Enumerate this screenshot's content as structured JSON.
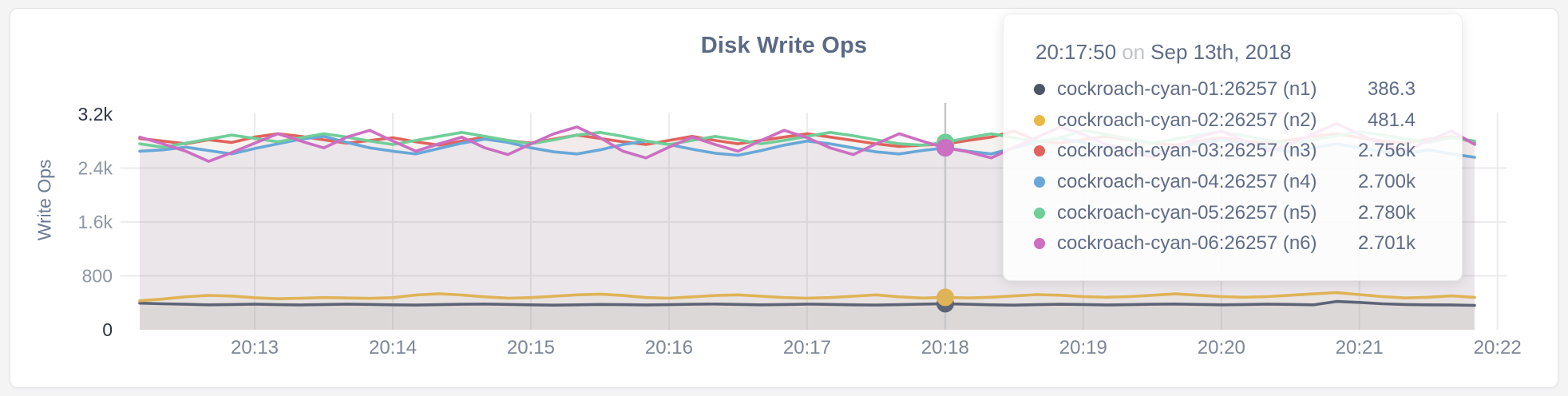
{
  "page": {
    "background": "#f4f4f5"
  },
  "chart_data": {
    "type": "line",
    "title": "Disk Write Ops",
    "ylabel": "Write Ops",
    "x_tick_labels": [
      "20:13",
      "20:14",
      "20:15",
      "20:16",
      "20:17",
      "20:18",
      "20:19",
      "20:20",
      "20:21",
      "20:22"
    ],
    "y_tick_labels": [
      "0",
      "800",
      "1.6k",
      "2.4k",
      "3.2k"
    ],
    "y_tick_values": [
      0,
      800,
      1600,
      2400,
      3200
    ],
    "ylim": [
      0,
      3200
    ],
    "grid": true,
    "legend_position": "none",
    "hover_index": 35,
    "hover_time": "20:17:50",
    "colors": {
      "grid": "#ebebed",
      "crosshair": "#c7c7ca",
      "axis_tick_light": "#8d96a7",
      "axis_tick_dark": "#2c3545",
      "x_tick": "#7d8698"
    },
    "series": [
      {
        "name": "cockroach-cyan-01:26257 (n1)",
        "color": "#5c6476",
        "values": [
          395,
          385,
          378,
          370,
          375,
          380,
          372,
          368,
          374,
          380,
          376,
          370,
          366,
          372,
          378,
          382,
          376,
          370,
          365,
          370,
          376,
          372,
          368,
          372,
          378,
          382,
          376,
          370,
          374,
          380,
          376,
          370,
          366,
          372,
          380,
          386.3,
          378,
          370,
          365,
          372,
          378,
          374,
          368,
          372,
          378,
          382,
          376,
          370,
          374,
          380,
          376,
          370,
          420,
          405,
          385,
          375,
          370,
          368,
          362
        ]
      },
      {
        "name": "cockroach-cyan-02:26257 (n2)",
        "color": "#dfb357",
        "values": [
          430,
          455,
          490,
          510,
          500,
          475,
          460,
          468,
          478,
          472,
          466,
          476,
          515,
          535,
          515,
          488,
          468,
          478,
          498,
          518,
          528,
          508,
          478,
          468,
          488,
          508,
          518,
          498,
          478,
          468,
          478,
          498,
          518,
          488,
          470,
          481.4,
          472,
          482,
          502,
          522,
          512,
          492,
          482,
          492,
          512,
          532,
          512,
          492,
          482,
          492,
          512,
          532,
          552,
          522,
          492,
          472,
          482,
          502,
          480
        ]
      },
      {
        "name": "cockroach-cyan-03:26257 (n3)",
        "color": "#e0635c",
        "values": [
          2840,
          2800,
          2760,
          2820,
          2780,
          2860,
          2910,
          2870,
          2820,
          2770,
          2810,
          2850,
          2790,
          2740,
          2800,
          2860,
          2810,
          2770,
          2830,
          2890,
          2840,
          2790,
          2750,
          2810,
          2870,
          2810,
          2760,
          2810,
          2860,
          2910,
          2860,
          2810,
          2760,
          2720,
          2740,
          2756,
          2810,
          2860,
          2950,
          2800,
          2770,
          2820,
          2870,
          2820,
          2770,
          2740,
          2800,
          2850,
          2800,
          2770,
          2820,
          2870,
          2910,
          2850,
          2800,
          2770,
          2830,
          2870,
          2780
        ]
      },
      {
        "name": "cockroach-cyan-04:26257 (n4)",
        "color": "#68a7d8",
        "values": [
          2650,
          2670,
          2710,
          2660,
          2610,
          2690,
          2760,
          2830,
          2870,
          2780,
          2700,
          2650,
          2610,
          2690,
          2770,
          2830,
          2780,
          2700,
          2640,
          2610,
          2670,
          2750,
          2800,
          2750,
          2680,
          2620,
          2590,
          2660,
          2740,
          2800,
          2760,
          2700,
          2640,
          2610,
          2660,
          2700,
          2650,
          2610,
          2700,
          2790,
          2840,
          2780,
          2700,
          2660,
          2620,
          2700,
          2770,
          2820,
          2760,
          2700,
          2640,
          2700,
          2760,
          2700,
          2640,
          2610,
          2670,
          2610,
          2560
        ]
      },
      {
        "name": "cockroach-cyan-05:26257 (n5)",
        "color": "#70ce98",
        "values": [
          2760,
          2710,
          2770,
          2830,
          2890,
          2840,
          2790,
          2850,
          2910,
          2860,
          2800,
          2750,
          2810,
          2870,
          2930,
          2870,
          2810,
          2760,
          2820,
          2890,
          2930,
          2870,
          2800,
          2750,
          2810,
          2870,
          2820,
          2760,
          2810,
          2870,
          2930,
          2880,
          2820,
          2760,
          2740,
          2780,
          2850,
          2910,
          2850,
          2790,
          2850,
          2960,
          2900,
          2830,
          2770,
          2830,
          2890,
          2940,
          2880,
          2810,
          2760,
          2820,
          2880,
          2940,
          2890,
          2830,
          2780,
          2850,
          2800
        ]
      },
      {
        "name": "cockroach-cyan-06:26257 (n6)",
        "color": "#cc6ec2",
        "values": [
          2860,
          2760,
          2650,
          2500,
          2630,
          2770,
          2910,
          2800,
          2700,
          2860,
          2960,
          2800,
          2650,
          2760,
          2860,
          2700,
          2600,
          2760,
          2910,
          3010,
          2850,
          2650,
          2550,
          2710,
          2860,
          2750,
          2650,
          2810,
          2960,
          2850,
          2700,
          2600,
          2760,
          2910,
          2800,
          2701,
          2640,
          2550,
          2710,
          2860,
          3010,
          2900,
          2750,
          2650,
          2560,
          2710,
          2860,
          2950,
          2800,
          2650,
          2760,
          2910,
          3060,
          2900,
          2750,
          2650,
          2810,
          2950,
          2750
        ]
      }
    ]
  },
  "tooltip": {
    "time": "20:17:50",
    "on_word": "on",
    "date": "Sep 13th, 2018",
    "rows": [
      {
        "label": "cockroach-cyan-01:26257 (n1)",
        "value": "386.3",
        "color": "#4d5669"
      },
      {
        "label": "cockroach-cyan-02:26257 (n2)",
        "value": "481.4",
        "color": "#e8ba45"
      },
      {
        "label": "cockroach-cyan-03:26257 (n3)",
        "value": "2.756k",
        "color": "#e0635c"
      },
      {
        "label": "cockroach-cyan-04:26257 (n4)",
        "value": "2.700k",
        "color": "#68a7d8"
      },
      {
        "label": "cockroach-cyan-05:26257 (n5)",
        "value": "2.780k",
        "color": "#70ce98"
      },
      {
        "label": "cockroach-cyan-06:26257 (n6)",
        "value": "2.701k",
        "color": "#cc6ec2"
      }
    ]
  }
}
